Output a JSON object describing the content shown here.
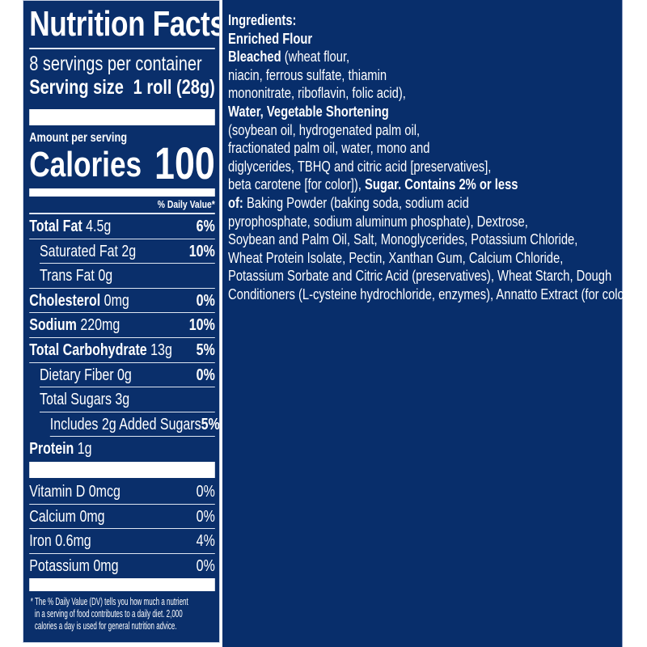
{
  "label": {
    "title": "Nutrition Facts",
    "servings": "8 servings per container",
    "serving_size_label": "Serving size",
    "serving_size_value": "1 roll (28g)",
    "amount_per_serving": "Amount per serving",
    "calories_label": "Calories",
    "calories_value": "100",
    "daily_value_header": "% Daily Value*",
    "nutrients": [
      {
        "name": "Total Fat",
        "amount": "4.5g",
        "dv": "6%"
      },
      {
        "name": "Saturated Fat",
        "amount": "2g",
        "dv": "10%"
      },
      {
        "name": "Trans Fat",
        "amount": "0g",
        "dv": ""
      },
      {
        "name": "Cholesterol",
        "amount": "0mg",
        "dv": "0%"
      },
      {
        "name": "Sodium",
        "amount": "220mg",
        "dv": "10%"
      },
      {
        "name": "Total Carbohydrate",
        "amount": "13g",
        "dv": "5%"
      },
      {
        "name": "Dietary Fiber",
        "amount": "0g",
        "dv": "0%"
      },
      {
        "name": "Total Sugars",
        "amount": "3g",
        "dv": ""
      },
      {
        "name": "Includes 2g Added Sugars",
        "amount": "",
        "dv": "5%"
      },
      {
        "name": "Protein",
        "amount": "1g",
        "dv": ""
      }
    ],
    "vitamins": [
      {
        "name": "Vitamin D",
        "amount": "0mcg",
        "dv": "0%"
      },
      {
        "name": "Calcium",
        "amount": "0mg",
        "dv": "0%"
      },
      {
        "name": "Iron",
        "amount": "0.6mg",
        "dv": "4%"
      },
      {
        "name": "Potassium",
        "amount": "0mg",
        "dv": "0%"
      }
    ],
    "footnote": [
      "* The % Daily Value (DV) tells you how much a nutrient",
      "in a serving of food contributes to a daily diet. 2,000",
      "calories a day is used for general nutrition advice."
    ]
  },
  "ingredients": {
    "heading": "Ingredients:",
    "l1b": "Enriched Flour",
    "l2b": "Bleached",
    "l2": " (wheat flour,",
    "l3": "niacin, ferrous sulfate, thiamin",
    "l4": "mononitrate, riboflavin, folic acid),",
    "l5b": "Water, Vegetable Shortening",
    "l6": "(soybean oil, hydrogenated palm oil,",
    "l7": "fractionated palm oil, water, mono and",
    "l8": "diglycerides, TBHQ and citric acid [preservatives],",
    "l9": "beta carotene [for color]), ",
    "l9b": "Sugar. Contains 2% or less",
    "l10b": "of:",
    "l10": " Baking Powder (baking soda, sodium acid",
    "l11": "pyrophosphate, sodium aluminum phosphate), Dextrose,",
    "l12": "Soybean and Palm Oil, Salt, Monoglycerides, Potassium Chloride,",
    "l13": "Wheat Protein Isolate, Pectin, Xanthan Gum, Calcium Chloride,",
    "l14": "Potassium Sorbate and Citric Acid (preservatives), Wheat Starch, Dough",
    "l15": "Conditioners (L-cysteine hydrochloride, enzymes), Annatto Extract (for color)."
  },
  "colors": {
    "panel": "#0a2f6b",
    "text": "#ffffff"
  }
}
